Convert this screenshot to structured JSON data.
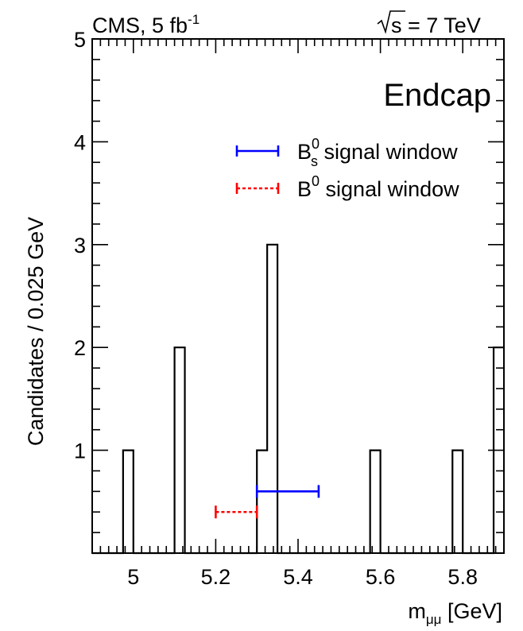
{
  "header": {
    "experiment": "CMS, 5 fb",
    "experiment_sup": "-1",
    "energy": "s = 7 TeV"
  },
  "chart_data": {
    "type": "histogram",
    "title": "",
    "region_label": "Endcap",
    "xlabel": "m",
    "xlabel_sub": "μμ",
    "xlabel_unit": " [GeV]",
    "ylabel": "Candidates / 0.025 GeV",
    "xlim": [
      4.9,
      5.9
    ],
    "ylim": [
      0,
      5
    ],
    "bin_width": 0.025,
    "x_ticks": [
      "5",
      "5.2",
      "5.4",
      "5.6",
      "5.8"
    ],
    "y_ticks": [
      "1",
      "2",
      "3",
      "4",
      "5"
    ],
    "bins": [
      {
        "x0": 4.975,
        "count": 1
      },
      {
        "x0": 5.1,
        "count": 2
      },
      {
        "x0": 5.3,
        "count": 1
      },
      {
        "x0": 5.325,
        "count": 3
      },
      {
        "x0": 5.575,
        "count": 1
      },
      {
        "x0": 5.775,
        "count": 1
      },
      {
        "x0": 5.875,
        "count": 2
      }
    ],
    "windows": [
      {
        "name": "B_s^0 signal window",
        "color": "#0000ff",
        "style": "solid",
        "xmin": 5.3,
        "xmax": 5.45,
        "y": 0.6
      },
      {
        "name": "B^0 signal window",
        "color": "#ff0000",
        "style": "dotted",
        "xmin": 5.2,
        "xmax": 5.3,
        "y": 0.4
      }
    ],
    "legend": {
      "placement": "top-right",
      "entries": [
        {
          "text": "signal window",
          "symbol": "B",
          "sup": "0",
          "sub": "s",
          "color": "#0000ff",
          "style": "solid"
        },
        {
          "text": "signal window",
          "symbol": "B",
          "sup": "0",
          "sub": "",
          "color": "#ff0000",
          "style": "dotted"
        }
      ]
    }
  }
}
